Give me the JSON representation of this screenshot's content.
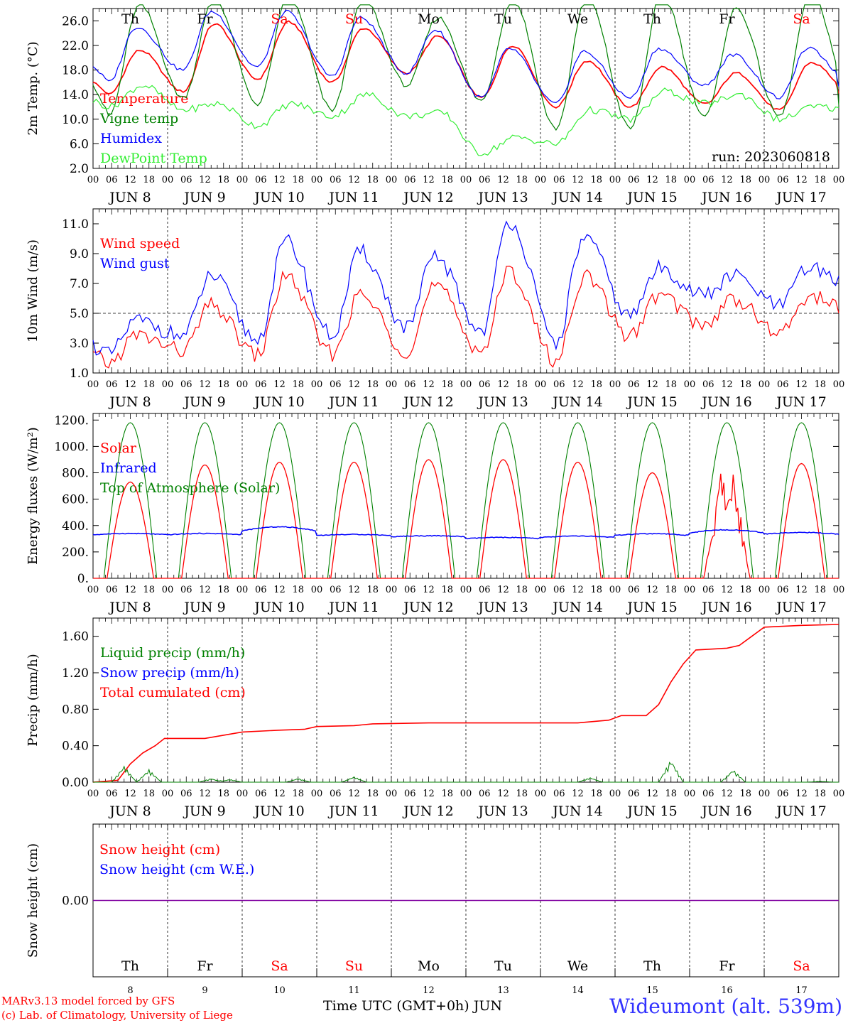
{
  "footer": {
    "model_line": "MARv3.13 model forced by GFS",
    "credit_line": "(c) Lab. of Climatology, University of Liege",
    "time_axis_label": "Time UTC (GMT+0h) JUN",
    "station": "Wideumont (alt. 539m)"
  },
  "colors": {
    "red": "#ff0000",
    "dark_green": "#008000",
    "light_green": "#33ee33",
    "blue": "#0000ff",
    "weekend": "#ff0000",
    "snow_line": "#8000a0"
  },
  "chart_data": [
    {
      "type": "line",
      "ylabel": "2m Temp. (°C)",
      "ylim": [
        2.0,
        28.0
      ],
      "yticks": [
        "26.0",
        "22.0",
        "18.0",
        "14.0",
        "10.0",
        "6.0",
        "2.0"
      ],
      "ytick_values": [
        26,
        22,
        18,
        14,
        10,
        6,
        2
      ],
      "annotation": "run: 2023060818",
      "x_hours": "0 to 240, hourly values, hour 0 = Jun 8 00 UTC",
      "day_labels": [
        "JUN  8",
        "JUN  9",
        "JUN 10",
        "JUN 11",
        "JUN 12",
        "JUN 13",
        "JUN 14",
        "JUN 15",
        "JUN 16",
        "JUN 17"
      ],
      "weekday_labels": [
        "Th",
        "Fr",
        "Sa",
        "Su",
        "Mo",
        "Tu",
        "We",
        "Th",
        "Fr",
        "Sa"
      ],
      "legend": [
        "Temperature",
        "Vigne temp",
        "Humidex",
        "DewPoint Temp"
      ],
      "series": [
        {
          "name": "Temperature",
          "color": "#ff0000",
          "day_min": [
            14.0,
            14.5,
            16.5,
            16.0,
            17.5,
            13.5,
            12.0,
            12.0,
            12.5,
            11.5
          ],
          "day_max": [
            21.2,
            25.5,
            25.8,
            24.8,
            23.5,
            22.0,
            19.5,
            18.5,
            17.5,
            19.2
          ],
          "end_value": 14.0
        },
        {
          "name": "Vigne temp",
          "color": "#008000",
          "day_min": [
            10.5,
            13.5,
            12.5,
            11.5,
            15.5,
            13.0,
            8.5,
            8.5,
            10.5,
            10.5
          ],
          "day_max": [
            28.5,
            29.5,
            30.0,
            29.5,
            26.5,
            29.5,
            30.0,
            30.5,
            28.0,
            30.5
          ],
          "end_value": 12.0
        },
        {
          "name": "Humidex",
          "color": "#0000ff",
          "day_min": [
            16.0,
            18.0,
            18.5,
            17.0,
            17.5,
            13.5,
            12.5,
            13.5,
            15.5,
            13.5
          ],
          "day_max": [
            25.0,
            27.5,
            27.5,
            26.5,
            24.5,
            21.5,
            21.0,
            21.5,
            20.5,
            21.5
          ],
          "end_value": 15.5
        },
        {
          "name": "DewPoint Temp",
          "color": "#33ee33",
          "day_min": [
            12.0,
            11.5,
            9.0,
            10.5,
            10.5,
            4.5,
            6.0,
            10.0,
            12.5,
            10.0
          ],
          "day_max": [
            15.5,
            12.5,
            12.5,
            14.0,
            11.0,
            7.0,
            11.5,
            14.5,
            14.0,
            12.0
          ],
          "end_value": 11.5
        }
      ]
    },
    {
      "type": "line",
      "ylabel": "10m Wind (m/s)",
      "ylim": [
        1.0,
        12.0
      ],
      "yticks": [
        "11.0",
        "9.0",
        "7.0",
        "5.0",
        "3.0",
        "1.0"
      ],
      "ytick_values": [
        11,
        9,
        7,
        5,
        3,
        1
      ],
      "reference_line": 5.0,
      "day_labels": [
        "JUN  8",
        "JUN  9",
        "JUN 10",
        "JUN 11",
        "JUN 12",
        "JUN 13",
        "JUN 14",
        "JUN 15",
        "JUN 16",
        "JUN 17"
      ],
      "legend": [
        "Wind speed",
        "Wind gust"
      ],
      "series": [
        {
          "name": "Wind speed",
          "color": "#ff0000",
          "day_min": [
            1.6,
            2.5,
            2.2,
            2.3,
            2.5,
            2.5,
            1.8,
            3.5,
            4.2,
            3.6
          ],
          "day_max": [
            3.5,
            5.5,
            7.5,
            6.2,
            6.8,
            7.8,
            7.5,
            6.2,
            6.0,
            6.1
          ],
          "end_value": 5.3
        },
        {
          "name": "Wind gust",
          "color": "#0000ff",
          "day_min": [
            2.2,
            3.5,
            3.2,
            3.5,
            4.0,
            3.8,
            3.0,
            4.8,
            6.2,
            5.5
          ],
          "day_max": [
            4.5,
            7.5,
            9.8,
            9.1,
            8.8,
            11.2,
            10.1,
            8.0,
            7.5,
            8.0
          ],
          "end_value": 7.0
        }
      ]
    },
    {
      "type": "line",
      "ylabel": "Energy fluxes (W/m²)",
      "ylim": [
        0,
        1250
      ],
      "yticks": [
        "1200.",
        "1000.",
        "800.",
        "600.",
        "400.",
        "200.",
        "0."
      ],
      "ytick_values": [
        1200,
        1000,
        800,
        600,
        400,
        200,
        0
      ],
      "day_labels": [
        "JUN  8",
        "JUN  9",
        "JUN 10",
        "JUN 11",
        "JUN 12",
        "JUN 13",
        "JUN 14",
        "JUN 15",
        "JUN 16",
        "JUN 17"
      ],
      "legend": [
        "Solar",
        "Infrared",
        "Top of Atmosphere (Solar)"
      ],
      "series": [
        {
          "name": "Solar",
          "color": "#ff0000",
          "day_max": [
            730,
            860,
            880,
            880,
            900,
            900,
            880,
            800,
            870,
            870
          ]
        },
        {
          "name": "Infrared",
          "color": "#0000ff",
          "day_min": [
            310,
            310,
            300,
            310,
            300,
            280,
            290,
            300,
            300,
            310
          ],
          "day_max": [
            350,
            350,
            420,
            340,
            330,
            320,
            330,
            350,
            390,
            360
          ]
        },
        {
          "name": "Top of Atmosphere (Solar)",
          "color": "#008000",
          "day_max": [
            1180,
            1180,
            1180,
            1180,
            1180,
            1180,
            1180,
            1180,
            1180,
            1180
          ]
        }
      ]
    },
    {
      "type": "line",
      "ylabel": "Precip (mm/h)",
      "ylim": [
        0.0,
        1.8
      ],
      "yticks": [
        "1.60",
        "1.20",
        "0.80",
        "0.40",
        "0.00"
      ],
      "ytick_values": [
        1.6,
        1.2,
        0.8,
        0.4,
        0.0
      ],
      "day_labels": [
        "JUN  8",
        "JUN  9",
        "JUN 10",
        "JUN 11",
        "JUN 12",
        "JUN 13",
        "JUN 14",
        "JUN 15",
        "JUN 16",
        "JUN 17"
      ],
      "legend": [
        "Liquid precip (mm/h)",
        "Snow precip (mm/h)",
        "Total cumulated (cm)"
      ],
      "series": [
        {
          "name": "Total cumulated (cm)",
          "color": "#ff0000",
          "points": [
            [
              0,
              0.0
            ],
            [
              8,
              0.02
            ],
            [
              12,
              0.2
            ],
            [
              16,
              0.32
            ],
            [
              20,
              0.4
            ],
            [
              23,
              0.48
            ],
            [
              36,
              0.48
            ],
            [
              48,
              0.55
            ],
            [
              60,
              0.57
            ],
            [
              68,
              0.58
            ],
            [
              72,
              0.61
            ],
            [
              84,
              0.62
            ],
            [
              90,
              0.64
            ],
            [
              108,
              0.65
            ],
            [
              156,
              0.65
            ],
            [
              166,
              0.68
            ],
            [
              170,
              0.73
            ],
            [
              178,
              0.73
            ],
            [
              182,
              0.85
            ],
            [
              186,
              1.1
            ],
            [
              190,
              1.3
            ],
            [
              194,
              1.45
            ],
            [
              204,
              1.47
            ],
            [
              208,
              1.5
            ],
            [
              212,
              1.6
            ],
            [
              216,
              1.7
            ],
            [
              228,
              1.72
            ],
            [
              240,
              1.73
            ]
          ]
        },
        {
          "name": "Liquid precip (mm/h)",
          "color": "#008000",
          "events": [
            [
              10,
              0.18
            ],
            [
              18,
              0.14
            ],
            [
              38,
              0.04
            ],
            [
              44,
              0.03
            ],
            [
              66,
              0.04
            ],
            [
              84,
              0.06
            ],
            [
              160,
              0.05
            ],
            [
              186,
              0.25
            ],
            [
              206,
              0.14
            ],
            [
              234,
              0.01
            ]
          ]
        },
        {
          "name": "Snow precip (mm/h)",
          "color": "#0000ff",
          "events": []
        }
      ]
    },
    {
      "type": "line",
      "ylabel": "Snow height (cm)",
      "ylim": [
        -1,
        1
      ],
      "yticks": [
        "0.00"
      ],
      "ytick_values": [
        0.0
      ],
      "day_numbers": [
        "8",
        "9",
        "10",
        "11",
        "12",
        "13",
        "14",
        "15",
        "16",
        "17"
      ],
      "weekday_labels": [
        "Th",
        "Fr",
        "Sa",
        "Su",
        "Mo",
        "Tu",
        "We",
        "Th",
        "Fr",
        "Sa"
      ],
      "legend": [
        "Snow height (cm)",
        "Snow height (cm W.E.)"
      ],
      "series": [
        {
          "name": "Snow height (cm)",
          "color": "#ff0000",
          "constant": 0.0
        },
        {
          "name": "Snow height (cm W.E.)",
          "color": "#0000ff",
          "constant": 0.0
        }
      ]
    }
  ]
}
